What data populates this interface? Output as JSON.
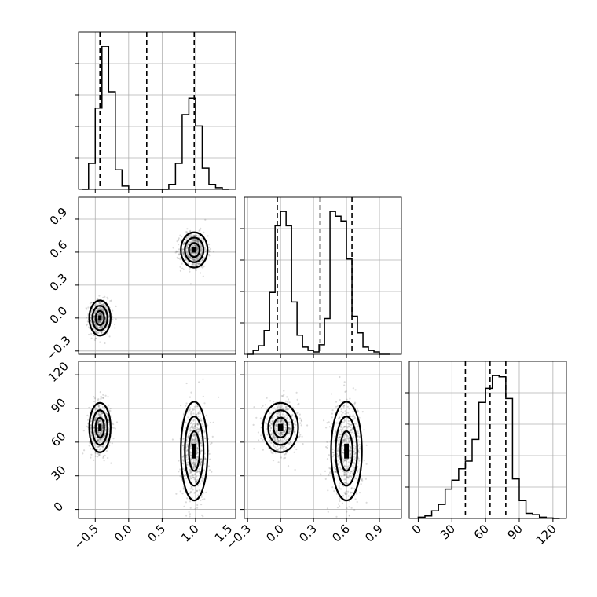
{
  "colors": {
    "ink": "#000000",
    "grid": "#b0b0b0",
    "points": "#555555",
    "fill_dark": "#1a1a1a",
    "fill_mid": "#7a7a7a",
    "fill_light": "#d8d8d8"
  },
  "chart_data": [
    {
      "type": "histogram",
      "panel": "hist-param1",
      "xlim": [
        -0.75,
        1.6
      ],
      "grid": true,
      "bins": [
        -0.7,
        -0.6,
        -0.5,
        -0.4,
        -0.3,
        -0.2,
        -0.1,
        0.0,
        0.1,
        0.2,
        0.3,
        0.4,
        0.5,
        0.6,
        0.7,
        0.8,
        0.9,
        1.0,
        1.1,
        1.2,
        1.3,
        1.4,
        1.5
      ],
      "counts": [
        0,
        80,
        250,
        440,
        300,
        60,
        10,
        0,
        0,
        0,
        0,
        0,
        0,
        15,
        80,
        230,
        280,
        195,
        65,
        15,
        5,
        0
      ],
      "quantiles": [
        -0.43,
        0.27,
        0.98
      ]
    },
    {
      "type": "histogram",
      "panel": "hist-param2",
      "xlim": [
        -0.33,
        1.1
      ],
      "grid": true,
      "bins": [
        -0.3,
        -0.25,
        -0.2,
        -0.15,
        -0.1,
        -0.05,
        0.0,
        0.05,
        0.1,
        0.15,
        0.2,
        0.25,
        0.3,
        0.35,
        0.4,
        0.45,
        0.5,
        0.55,
        0.6,
        0.65,
        0.7,
        0.75,
        0.8,
        0.85,
        0.9,
        0.95,
        1.0
      ],
      "counts": [
        0,
        8,
        18,
        50,
        130,
        270,
        300,
        270,
        110,
        40,
        15,
        8,
        5,
        20,
        75,
        300,
        290,
        280,
        200,
        80,
        45,
        15,
        8,
        5,
        0,
        0
      ],
      "quantiles": [
        -0.03,
        0.36,
        0.65
      ]
    },
    {
      "type": "histogram",
      "panel": "hist-param3",
      "xlim": [
        -8,
        132
      ],
      "grid": true,
      "x_ticks": [
        0,
        30,
        60,
        90,
        120
      ],
      "bins": [
        0,
        6,
        12,
        18,
        24,
        30,
        36,
        42,
        48,
        54,
        60,
        66,
        72,
        78,
        84,
        90,
        96,
        102,
        108,
        114,
        120,
        126
      ],
      "counts": [
        5,
        10,
        30,
        55,
        115,
        150,
        195,
        225,
        310,
        455,
        510,
        560,
        555,
        470,
        155,
        70,
        20,
        15,
        5,
        2,
        0
      ],
      "quantiles": [
        42,
        64,
        78
      ]
    },
    {
      "type": "scatter",
      "panel": "scatter-param1-vs-param2",
      "xlim": [
        -0.75,
        1.6
      ],
      "ylim": [
        -0.33,
        1.1
      ],
      "y_ticks": [
        -0.3,
        0.0,
        0.3,
        0.6,
        0.9
      ],
      "grid": true,
      "clusters": [
        {
          "center": [
            -0.43,
            0.0
          ],
          "std": [
            0.08,
            0.08
          ],
          "n": 600
        },
        {
          "center": [
            0.98,
            0.62
          ],
          "std": [
            0.1,
            0.08
          ],
          "n": 600
        }
      ]
    },
    {
      "type": "scatter",
      "panel": "scatter-param1-vs-param3",
      "xlim": [
        -0.75,
        1.6
      ],
      "ylim": [
        -8,
        132
      ],
      "x_ticks": [
        -0.5,
        0.0,
        0.5,
        1.0,
        1.5
      ],
      "y_ticks": [
        0,
        30,
        60,
        90,
        120
      ],
      "grid": true,
      "clusters": [
        {
          "center": [
            -0.43,
            73
          ],
          "std": [
            0.08,
            11
          ],
          "n": 600
        },
        {
          "center": [
            0.98,
            52
          ],
          "std": [
            0.1,
            22
          ],
          "n": 600
        }
      ]
    },
    {
      "type": "scatter",
      "panel": "scatter-param2-vs-param3",
      "xlim": [
        -0.33,
        1.1
      ],
      "ylim": [
        -8,
        132
      ],
      "x_ticks": [
        -0.3,
        0.0,
        0.3,
        0.6,
        0.9
      ],
      "grid": true,
      "clusters": [
        {
          "center": [
            0.0,
            73
          ],
          "std": [
            0.08,
            11
          ],
          "n": 600
        },
        {
          "center": [
            0.6,
            52
          ],
          "std": [
            0.07,
            22
          ],
          "n": 600
        }
      ]
    }
  ],
  "tick_labels": {
    "p1_x": [
      "−0.5",
      "0.0",
      "0.5",
      "1.0",
      "1.5"
    ],
    "p2_x": [
      "−0.3",
      "0.0",
      "0.3",
      "0.6",
      "0.9"
    ],
    "p3_x": [
      "0",
      "30",
      "60",
      "90",
      "120"
    ],
    "p2_y": [
      "−0.3",
      "0.0",
      "0.3",
      "0.6",
      "0.9"
    ],
    "p3_y": [
      "0",
      "30",
      "60",
      "90",
      "120"
    ]
  }
}
